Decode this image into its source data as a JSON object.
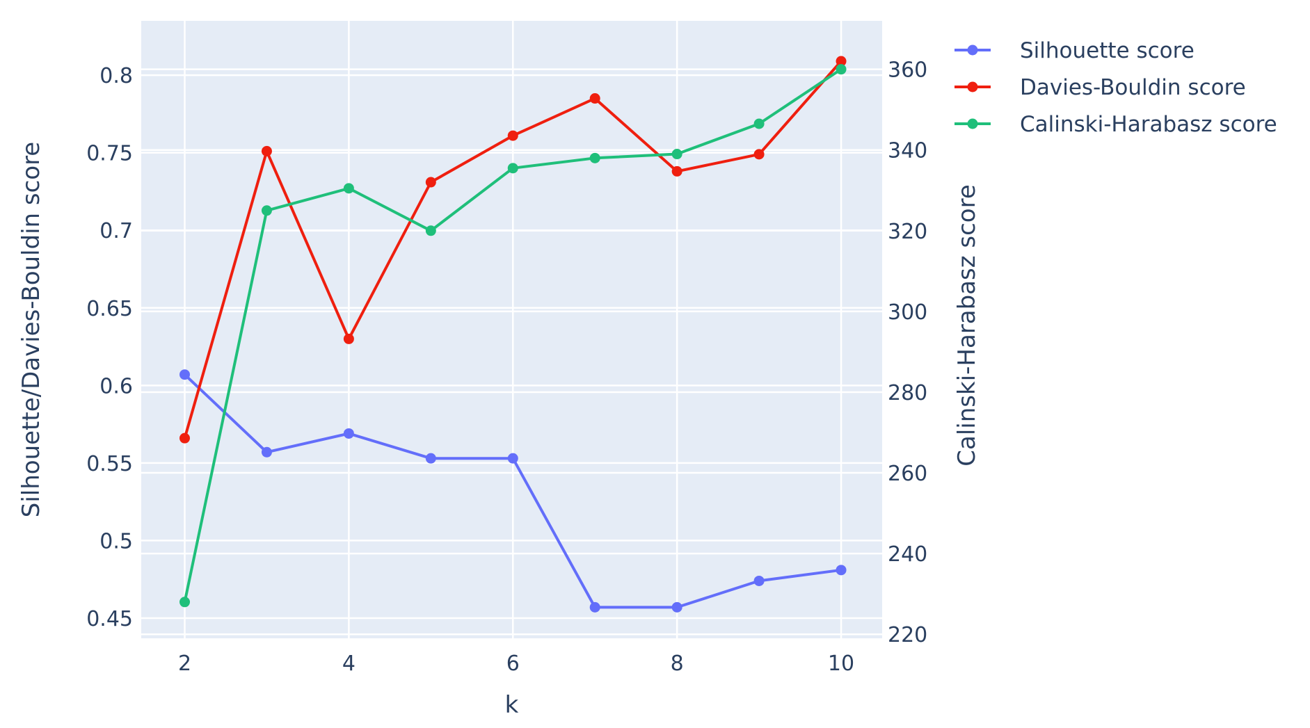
{
  "chart_data": {
    "type": "line",
    "title": "",
    "xlabel": "k",
    "ylabel": "Silhouette/Davies-Bouldin score",
    "y2label": "Calinski-Harabasz score",
    "x": [
      2,
      3,
      4,
      5,
      6,
      7,
      8,
      9,
      10
    ],
    "xticks": [
      "2",
      "4",
      "6",
      "8",
      "10"
    ],
    "xlim": [
      1.47,
      10.5
    ],
    "ylim": [
      0.437,
      0.835
    ],
    "yticks": [
      "0.45",
      "0.5",
      "0.55",
      "0.6",
      "0.65",
      "0.7",
      "0.75",
      "0.8"
    ],
    "y2lim": [
      219,
      372
    ],
    "y2ticks": [
      "220",
      "240",
      "260",
      "280",
      "300",
      "320",
      "340",
      "360"
    ],
    "grid": true,
    "legend_position": "top-right",
    "plot_background": "#e5ecf6",
    "series": [
      {
        "name": "Silhouette score",
        "axis": "left",
        "color": "#636efa",
        "values": [
          0.607,
          0.557,
          0.569,
          0.553,
          0.553,
          0.457,
          0.457,
          0.474,
          0.481
        ]
      },
      {
        "name": "Davies-Bouldin score",
        "axis": "left",
        "color": "#ef1f0f",
        "values": [
          0.566,
          0.751,
          0.63,
          0.731,
          0.761,
          0.785,
          0.738,
          0.749,
          0.809
        ]
      },
      {
        "name": "Calinski-Harabasz score",
        "axis": "right",
        "color": "#1fbf7a",
        "values": [
          228,
          325,
          330.5,
          320,
          335.5,
          338,
          339,
          346.5,
          360
        ]
      }
    ]
  }
}
